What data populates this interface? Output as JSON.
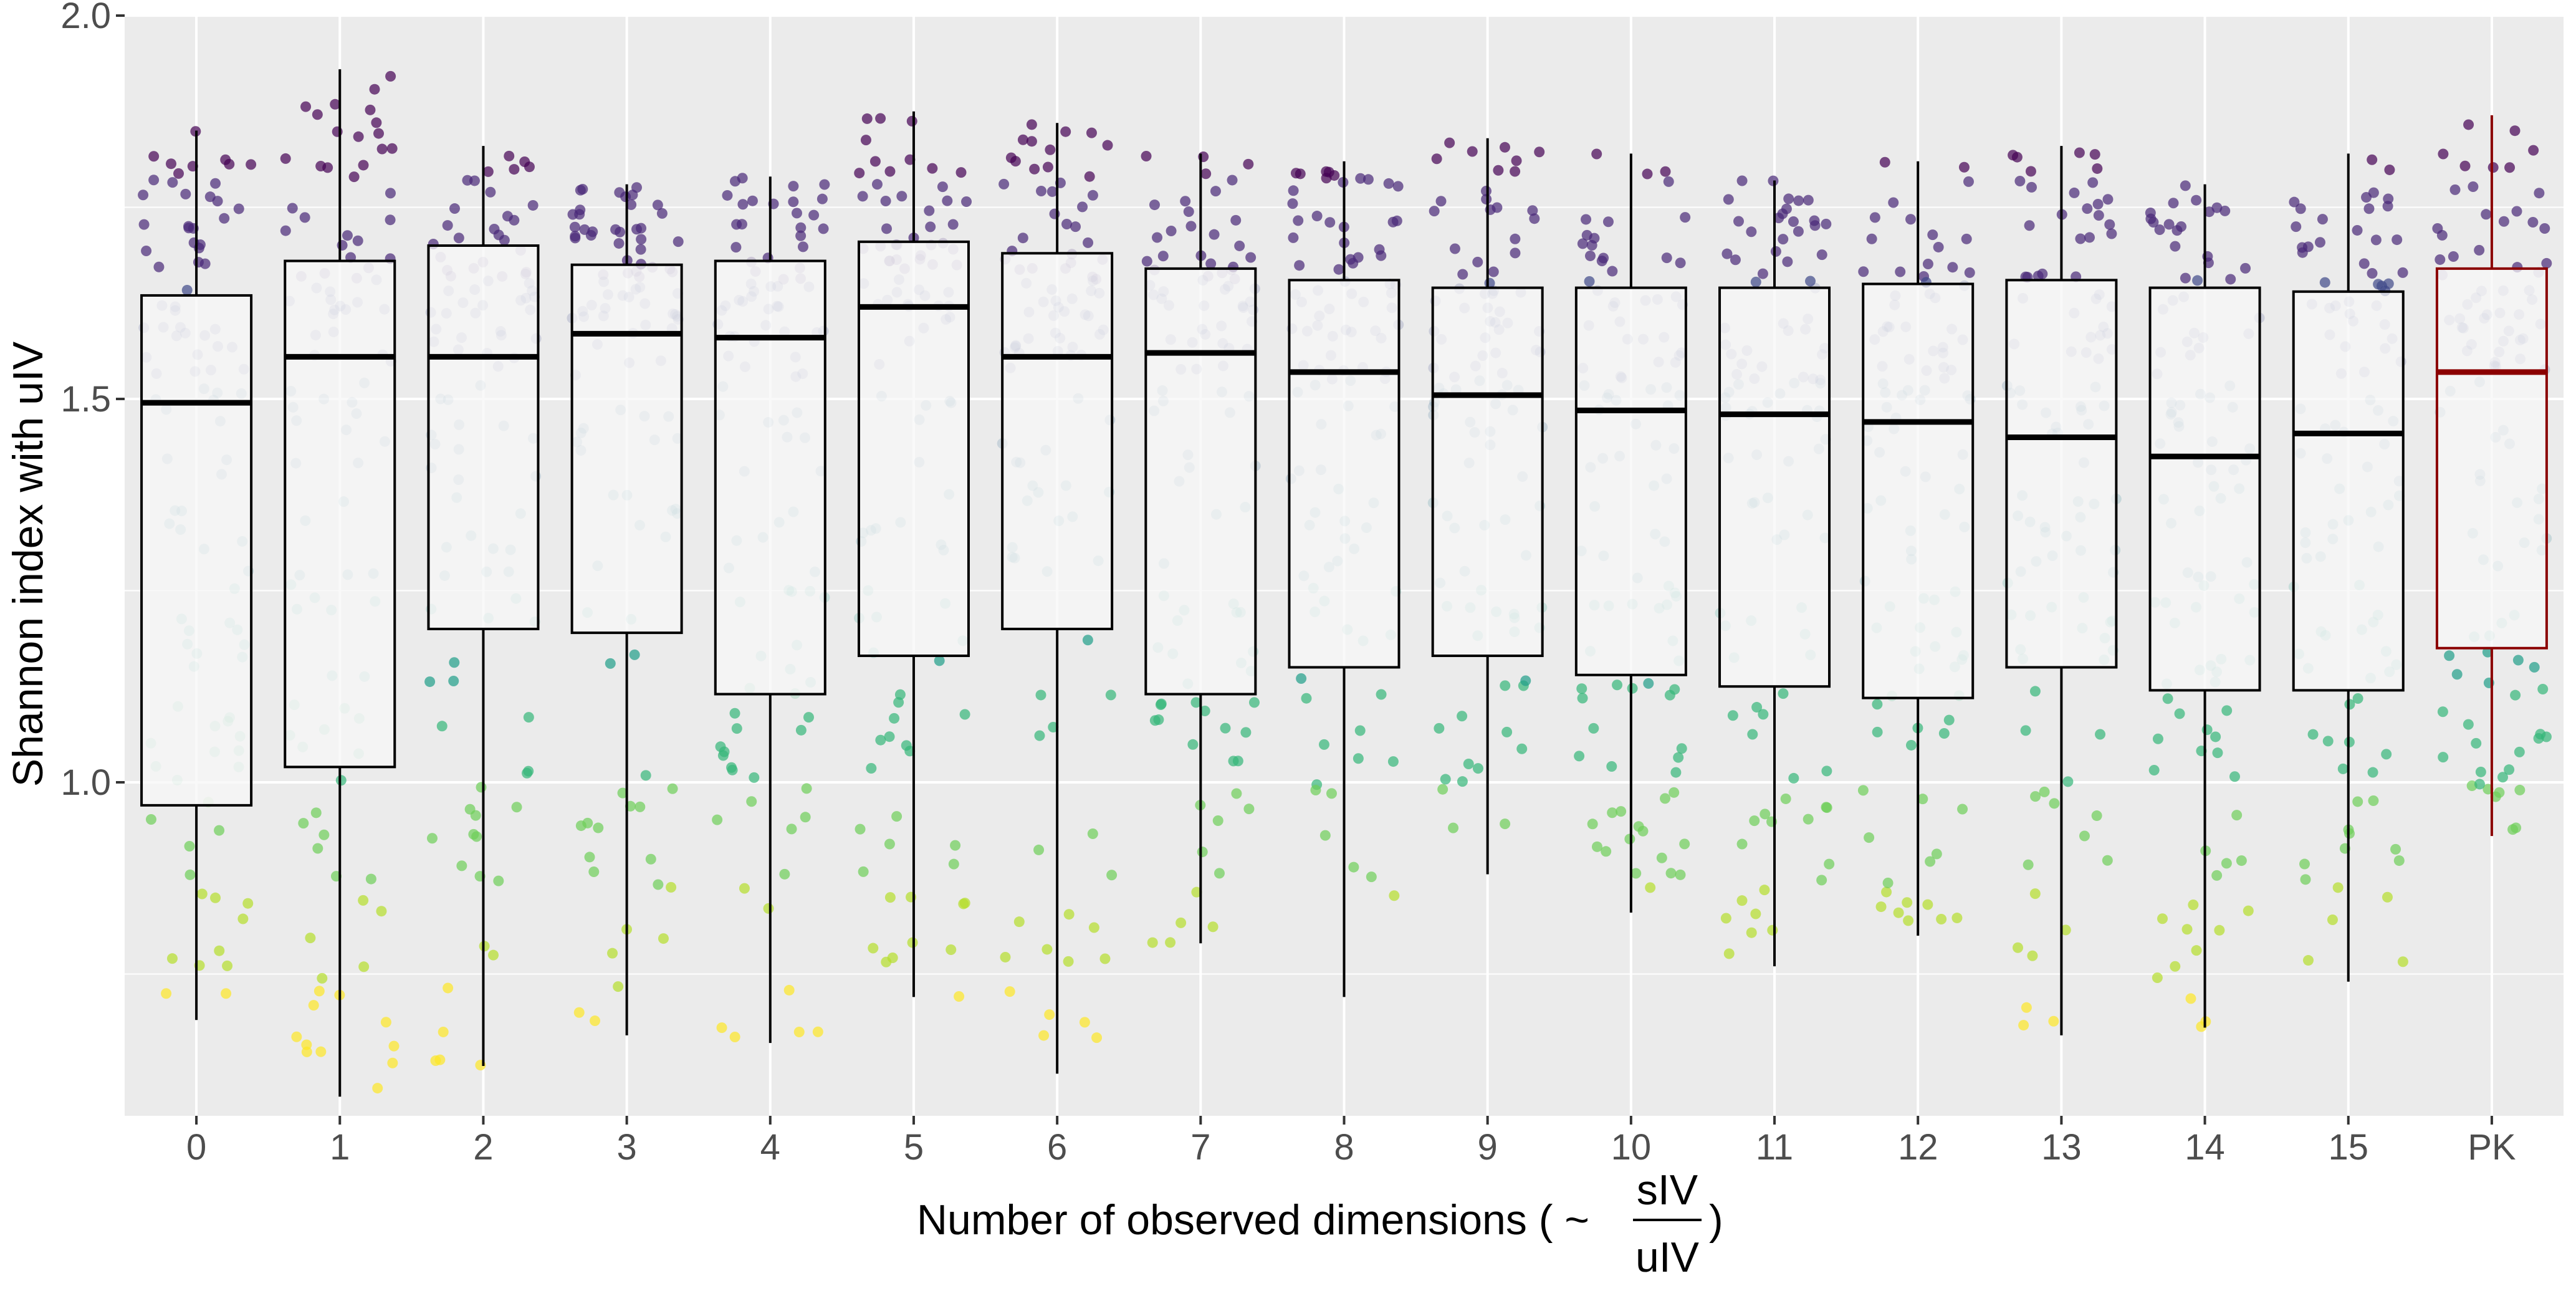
{
  "chart_data": {
    "type": "box",
    "overlay": "jittered-scatter",
    "title": "",
    "ylabel": "Shannon index with uIV",
    "xlabel": {
      "prefix": "Number of observed dimensions ( ~",
      "numerator": "sIV",
      "denominator": "uIV",
      "suffix": ")"
    },
    "ylim": [
      0.565,
      2.0
    ],
    "yticks": [
      1.0,
      1.5,
      2.0
    ],
    "ytick_labels": [
      "1.0",
      "1.5",
      "2.0"
    ],
    "grid": true,
    "legend": "none",
    "categories": [
      "0",
      "1",
      "2",
      "3",
      "4",
      "5",
      "6",
      "7",
      "8",
      "9",
      "10",
      "11",
      "12",
      "13",
      "14",
      "15",
      "PK"
    ],
    "highlight": {
      "category": "PK",
      "color": "#8b0000"
    },
    "boxes": [
      {
        "category": "0",
        "min": 0.69,
        "q1": 0.97,
        "median": 1.495,
        "q3": 1.635,
        "max": 1.85
      },
      {
        "category": "1",
        "min": 0.59,
        "q1": 1.02,
        "median": 1.555,
        "q3": 1.68,
        "max": 1.93
      },
      {
        "category": "2",
        "min": 0.63,
        "q1": 1.2,
        "median": 1.555,
        "q3": 1.7,
        "max": 1.83
      },
      {
        "category": "3",
        "min": 0.67,
        "q1": 1.195,
        "median": 1.585,
        "q3": 1.675,
        "max": 1.78
      },
      {
        "category": "4",
        "min": 0.66,
        "q1": 1.115,
        "median": 1.58,
        "q3": 1.68,
        "max": 1.79
      },
      {
        "category": "5",
        "min": 0.72,
        "q1": 1.165,
        "median": 1.62,
        "q3": 1.705,
        "max": 1.875
      },
      {
        "category": "6",
        "min": 0.62,
        "q1": 1.2,
        "median": 1.555,
        "q3": 1.69,
        "max": 1.86
      },
      {
        "category": "7",
        "min": 0.79,
        "q1": 1.115,
        "median": 1.56,
        "q3": 1.67,
        "max": 1.82
      },
      {
        "category": "8",
        "min": 0.72,
        "q1": 1.15,
        "median": 1.535,
        "q3": 1.655,
        "max": 1.81
      },
      {
        "category": "9",
        "min": 0.88,
        "q1": 1.165,
        "median": 1.505,
        "q3": 1.645,
        "max": 1.84
      },
      {
        "category": "10",
        "min": 0.83,
        "q1": 1.14,
        "median": 1.485,
        "q3": 1.645,
        "max": 1.82
      },
      {
        "category": "11",
        "min": 0.76,
        "q1": 1.125,
        "median": 1.48,
        "q3": 1.645,
        "max": 1.785
      },
      {
        "category": "12",
        "min": 0.8,
        "q1": 1.11,
        "median": 1.47,
        "q3": 1.65,
        "max": 1.81
      },
      {
        "category": "13",
        "min": 0.67,
        "q1": 1.15,
        "median": 1.45,
        "q3": 1.655,
        "max": 1.83
      },
      {
        "category": "14",
        "min": 0.68,
        "q1": 1.12,
        "median": 1.425,
        "q3": 1.645,
        "max": 1.78
      },
      {
        "category": "15",
        "min": 0.74,
        "q1": 1.12,
        "median": 1.455,
        "q3": 1.64,
        "max": 1.82
      },
      {
        "category": "PK",
        "min": 0.93,
        "q1": 1.175,
        "median": 1.535,
        "q3": 1.67,
        "max": 1.87
      }
    ],
    "point_colors": [
      "#fde725",
      "#b5de2b",
      "#6ece58",
      "#35b779",
      "#1f9e89",
      "#26828e",
      "#31688e",
      "#3e4989",
      "#482878",
      "#440154"
    ],
    "points_per_category": 100
  },
  "colors": {
    "panel_background": "#ebebeb",
    "grid_major": "#ffffff",
    "box_fill": "#f7f7f7",
    "box_line": "#000000",
    "tick_text": "#4d4d4d"
  }
}
